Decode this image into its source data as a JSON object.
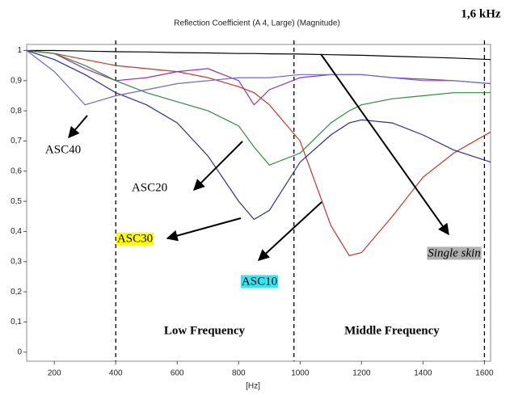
{
  "chart_data": {
    "type": "line",
    "title": "Reflection Coefficient (A 4, Large) (Magnitude)",
    "x_label": "[Hz]",
    "x": [
      110,
      200,
      300,
      400,
      500,
      600,
      700,
      800,
      850,
      900,
      1000,
      1100,
      1160,
      1200,
      1300,
      1400,
      1500,
      1620
    ],
    "series": [
      {
        "color": "#000000",
        "values": [
          1.0,
          1.0,
          0.998,
          0.996,
          0.995,
          0.993,
          0.992,
          0.99,
          0.99,
          0.989,
          0.988,
          0.986,
          0.985,
          0.984,
          0.981,
          0.978,
          0.975,
          0.97
        ]
      },
      {
        "color": "#c0392b",
        "values": [
          1.0,
          0.99,
          0.97,
          0.95,
          0.94,
          0.93,
          0.91,
          0.88,
          0.86,
          0.82,
          0.7,
          0.42,
          0.32,
          0.33,
          0.45,
          0.58,
          0.66,
          0.73
        ]
      },
      {
        "color": "#9b30a0",
        "values": [
          1.0,
          0.99,
          0.94,
          0.9,
          0.91,
          0.93,
          0.94,
          0.9,
          0.82,
          0.87,
          0.91,
          0.92,
          0.92,
          0.92,
          0.91,
          0.905,
          0.9,
          0.89
        ]
      },
      {
        "color": "#2e8b3e",
        "values": [
          1.0,
          0.99,
          0.95,
          0.9,
          0.86,
          0.83,
          0.8,
          0.75,
          0.68,
          0.62,
          0.66,
          0.76,
          0.8,
          0.82,
          0.84,
          0.85,
          0.86,
          0.86
        ]
      },
      {
        "color": "#2a2f8f",
        "values": [
          1.0,
          0.97,
          0.92,
          0.86,
          0.82,
          0.76,
          0.65,
          0.5,
          0.44,
          0.47,
          0.63,
          0.72,
          0.76,
          0.77,
          0.76,
          0.72,
          0.67,
          0.63
        ]
      },
      {
        "color": "#6a6acd",
        "values": [
          1.0,
          0.93,
          0.82,
          0.85,
          0.87,
          0.89,
          0.9,
          0.91,
          0.91,
          0.91,
          0.92,
          0.92,
          0.92,
          0.92,
          0.91,
          0.9,
          0.9,
          0.89
        ]
      }
    ],
    "xlim": [
      110,
      1620
    ],
    "ylim": [
      -0.03,
      1.02
    ],
    "xticks": [
      200,
      400,
      600,
      800,
      1000,
      1200,
      1400,
      1600
    ],
    "yticks": [
      0,
      {
        "value": 0.1,
        "label": "0,1"
      },
      {
        "value": 0.2,
        "label": "0,2"
      },
      {
        "value": 0.3,
        "label": "0,3"
      },
      {
        "value": 0.4,
        "label": "0,4"
      },
      {
        "value": 0.5,
        "label": "0,5"
      },
      {
        "value": 0.6,
        "label": "0,6"
      },
      {
        "value": 0.7,
        "label": "0,7"
      },
      {
        "value": 0.8,
        "label": "0,8"
      },
      {
        "value": 0.9,
        "label": "0,9"
      },
      1
    ],
    "vlines": [
      400,
      980,
      1600
    ],
    "annotations": [
      "1,6 kHz",
      "ASC40",
      "ASC20",
      "ASC30",
      "ASC10",
      "Single skin",
      "Low Frequency",
      "Middle Frequency"
    ]
  }
}
